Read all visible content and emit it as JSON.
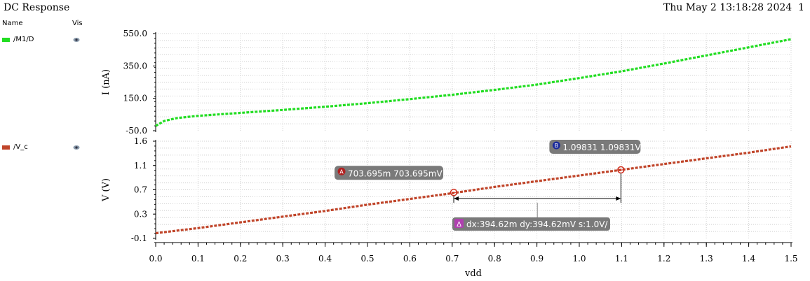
{
  "window": {
    "title": "DC Response",
    "timestamp": "Thu May 2 13:18:28 2024",
    "page": "1"
  },
  "legend": {
    "header_name": "Name",
    "header_vis": "Vis",
    "items": [
      {
        "label": "/M1/D",
        "color": "#22dd22",
        "icon": "eye-icon"
      },
      {
        "label": "/V_c",
        "color": "#c0452a",
        "icon": "eye-icon"
      }
    ]
  },
  "chart_data": [
    {
      "type": "line",
      "ylabel": "I (nA)",
      "xlabel": "",
      "yticks": [
        "550.0",
        "350.0",
        "150.0",
        "-50.0"
      ],
      "ylim": [
        -50,
        550
      ],
      "xlim": [
        0,
        1.5
      ],
      "grid": true,
      "series": [
        {
          "name": "/M1/D",
          "color": "#22dd22",
          "x": [
            0.0,
            0.02,
            0.05,
            0.1,
            0.2,
            0.3,
            0.4,
            0.5,
            0.6,
            0.7,
            0.8,
            0.9,
            1.0,
            1.1,
            1.2,
            1.3,
            1.4,
            1.5
          ],
          "y": [
            -20,
            10,
            28,
            42,
            60,
            78,
            98,
            120,
            145,
            172,
            202,
            235,
            275,
            317,
            365,
            415,
            465,
            515
          ]
        }
      ]
    },
    {
      "type": "line",
      "ylabel": "V (V)",
      "xlabel": "vdd",
      "yticks": [
        "1.6",
        "1.1",
        "0.7",
        "0.3",
        "-0.1"
      ],
      "xticks": [
        "0.0",
        "0.1",
        "0.2",
        "0.3",
        "0.4",
        "0.5",
        "0.6",
        "0.7",
        "0.8",
        "0.9",
        "1.0",
        "1.1",
        "1.2",
        "1.3",
        "1.4",
        "1.5"
      ],
      "ylim": [
        -0.1,
        1.6
      ],
      "xlim": [
        0,
        1.5
      ],
      "grid": true,
      "series": [
        {
          "name": "/V_c",
          "color": "#c0452a",
          "x": [
            0.0,
            0.1,
            0.2,
            0.3,
            0.4,
            0.5,
            0.6,
            0.7,
            0.8,
            0.9,
            1.0,
            1.1,
            1.2,
            1.3,
            1.4,
            1.5
          ],
          "y": [
            -0.01,
            0.08,
            0.18,
            0.28,
            0.38,
            0.49,
            0.59,
            0.69,
            0.8,
            0.9,
            1.0,
            1.1,
            1.2,
            1.3,
            1.4,
            1.51
          ]
        }
      ],
      "markers": [
        {
          "id": "A",
          "x": 0.703695,
          "y": 0.703695,
          "text": "703.695m 703.695mV",
          "badge_color": "#b02020"
        },
        {
          "id": "B",
          "x": 1.09831,
          "y": 1.09831,
          "text": "1.09831 1.09831V",
          "badge_color": "#1a2a9a"
        }
      ],
      "delta": {
        "text": "dx:394.62m dy:394.62mV s:1.0V/",
        "badge": "Δ",
        "badge_color": "#b040b0",
        "from": "A",
        "to": "B"
      }
    }
  ]
}
